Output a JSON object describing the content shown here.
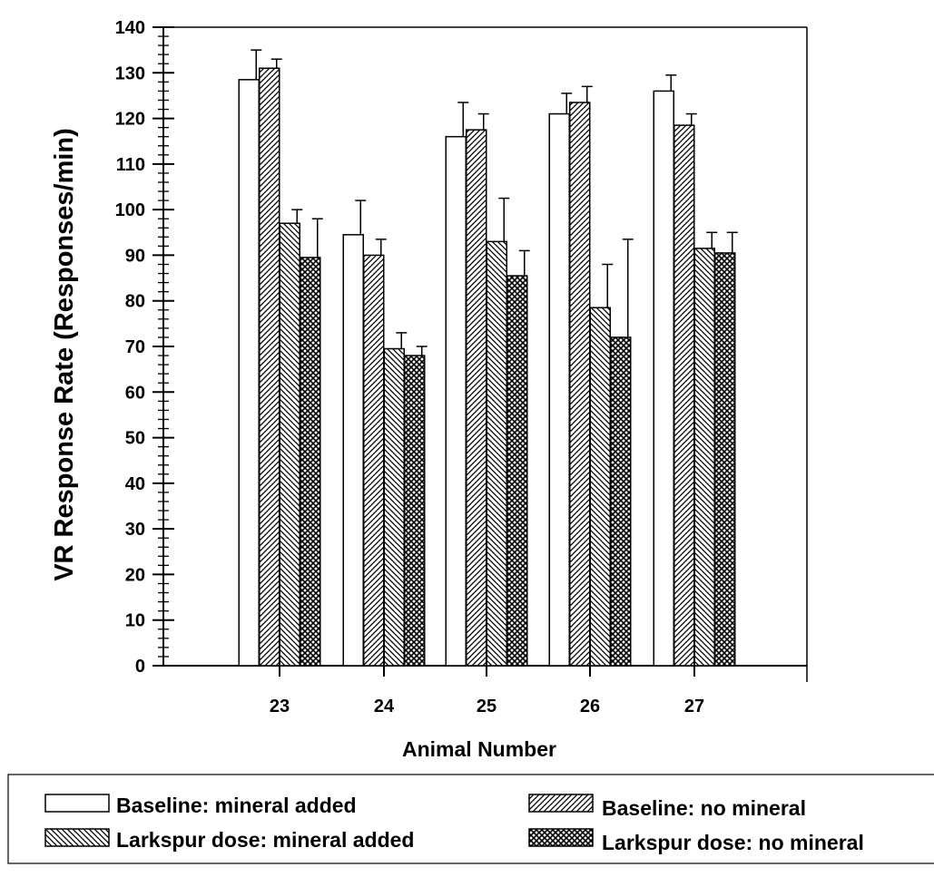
{
  "chart_data": {
    "type": "bar",
    "xlabel": "Animal Number",
    "ylabel": "VR Response Rate (Responses/min)",
    "ylim": [
      0,
      140
    ],
    "yticks": [
      0,
      10,
      20,
      30,
      40,
      50,
      60,
      70,
      80,
      90,
      100,
      110,
      120,
      130,
      140
    ],
    "categories": [
      "23",
      "24",
      "25",
      "26",
      "27"
    ],
    "grid": false,
    "legend_position": "bottom",
    "series": [
      {
        "name": "Baseline: mineral added",
        "pattern": "open",
        "values": [
          128.5,
          94.5,
          116,
          121,
          126
        ],
        "errors": [
          6.5,
          7.5,
          7.5,
          4.5,
          3.5
        ]
      },
      {
        "name": "Baseline: no mineral",
        "pattern": "hatch-forward",
        "values": [
          131,
          90,
          117.5,
          123.5,
          118.5
        ],
        "errors": [
          2.0,
          3.5,
          3.5,
          3.5,
          2.5
        ]
      },
      {
        "name": "Larkspur dose: mineral added",
        "pattern": "hatch-backward",
        "values": [
          97,
          69.5,
          93,
          78.5,
          91.5
        ],
        "errors": [
          3.0,
          3.5,
          9.5,
          9.5,
          3.5
        ]
      },
      {
        "name": "Larkspur dose: no mineral",
        "pattern": "crosshatch",
        "values": [
          89.5,
          68,
          85.5,
          72,
          90.5
        ],
        "errors": [
          8.5,
          2.0,
          5.5,
          21.5,
          4.5
        ]
      }
    ]
  }
}
